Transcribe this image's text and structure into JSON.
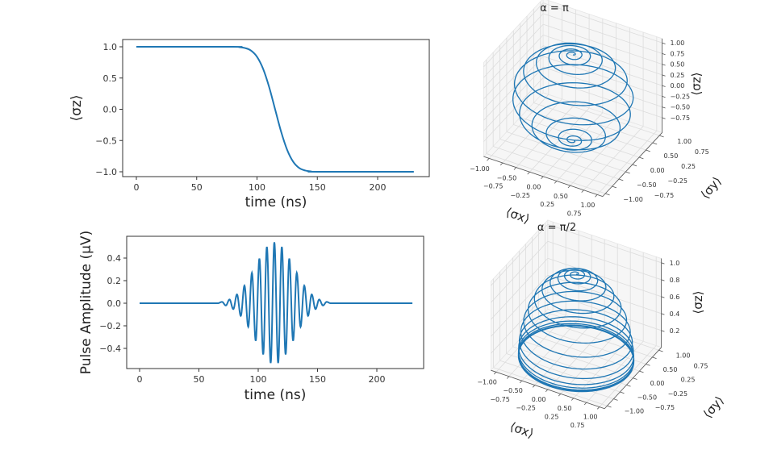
{
  "chart_data": [
    {
      "type": "line",
      "xlabel": "time (ns)",
      "ylabel": "⟨σz⟩",
      "xticks": [
        0,
        50,
        100,
        150,
        200
      ],
      "yticks": [
        -1.0,
        -0.5,
        0.0,
        0.5,
        1.0
      ],
      "ytick_labels": [
        "−1.0",
        "−0.5",
        "0.0",
        "0.5",
        "1.0"
      ],
      "xlim": [
        -11,
        243
      ],
      "ylim": [
        -1.1,
        1.1
      ],
      "grid": false,
      "color": "#1f77b4",
      "series": [
        {
          "x": [
            0,
            80,
            85,
            90,
            95,
            100,
            105,
            110,
            115,
            120,
            125,
            130,
            135,
            140,
            145,
            150,
            230
          ],
          "y": [
            1.0,
            1.0,
            0.995,
            0.98,
            0.94,
            0.84,
            0.65,
            0.36,
            0.0,
            -0.36,
            -0.65,
            -0.84,
            -0.94,
            -0.98,
            -0.995,
            -1.0,
            -1.0
          ]
        }
      ]
    },
    {
      "type": "line",
      "xlabel": "time (ns)",
      "ylabel": "Pulse Amplitude (μV)",
      "xticks": [
        0,
        50,
        100,
        150,
        200
      ],
      "yticks": [
        -0.4,
        -0.2,
        0.0,
        0.2,
        0.4
      ],
      "ytick_labels": [
        "−0.4",
        "−0.2",
        "0.0",
        "0.2",
        "0.4"
      ],
      "xlim": [
        -11,
        240
      ],
      "ylim": [
        -0.58,
        0.59
      ],
      "grid": false,
      "color": "#1f77b4",
      "series": [
        {
          "note_points": "local extrema of the oscillating pulse",
          "x": [
            0,
            66,
            69.5,
            72.7,
            75.8,
            79.0,
            82.1,
            85.3,
            88.4,
            91.6,
            94.7,
            97.9,
            101.0,
            104.2,
            107.3,
            110.5,
            113.6,
            116.8,
            119.9,
            123.1,
            126.2,
            129.4,
            132.5,
            135.7,
            138.8,
            142.0,
            145.1,
            148.3,
            151.4,
            154.6,
            157.7,
            161,
            230
          ],
          "y": [
            0,
            0,
            0.012,
            -0.02,
            0.033,
            -0.052,
            0.078,
            -0.112,
            0.156,
            -0.209,
            0.269,
            -0.333,
            0.396,
            -0.454,
            0.5,
            -0.53,
            0.54,
            -0.53,
            0.5,
            -0.454,
            0.396,
            -0.333,
            0.269,
            -0.209,
            0.156,
            -0.112,
            0.078,
            -0.052,
            0.033,
            -0.02,
            0.012,
            0,
            0
          ]
        }
      ]
    },
    {
      "type": "line3d",
      "title": "α = π",
      "xlabel": "⟨σx⟩",
      "ylabel": "⟨σy⟩",
      "zlabel": "⟨σz⟩",
      "xticks": [
        -1.0,
        -0.75,
        -0.5,
        -0.25,
        0.0,
        0.25,
        0.5,
        0.75,
        1.0
      ],
      "xtick_labels": [
        "−1.00",
        "−0.75",
        "−0.50",
        "−0.25",
        "0.00",
        "0.25",
        "0.50",
        "0.75",
        "1.00"
      ],
      "yticks": [
        -1.0,
        -0.75,
        -0.5,
        -0.25,
        0.0,
        0.25,
        0.5,
        0.75,
        1.0
      ],
      "ytick_labels": [
        "−1.00",
        "−0.75",
        "−0.50",
        "−0.25",
        "0.00",
        "0.25",
        "0.50",
        "0.75",
        "1.00"
      ],
      "zticks": [
        -0.75,
        -0.5,
        -0.25,
        0.0,
        0.25,
        0.5,
        0.75,
        1.0
      ],
      "ztick_labels": [
        "−0.75",
        "−0.50",
        "−0.25",
        "0.00",
        "0.25",
        "0.50",
        "0.75",
        "1.00"
      ],
      "zlim": [
        -1.1,
        1.1
      ],
      "color": "#1f77b4",
      "trajectory_turn_z": [
        1.0,
        0.99,
        0.96,
        0.88,
        0.72,
        0.45,
        0.08,
        -0.3,
        -0.62,
        -0.84,
        -0.95,
        -0.99,
        -1.0
      ]
    },
    {
      "type": "line3d",
      "title": "α = π/2",
      "xlabel": "⟨σx⟩",
      "ylabel": "⟨σy⟩",
      "zlabel": "⟨σz⟩",
      "xticks": [
        -1.0,
        -0.75,
        -0.5,
        -0.25,
        0.0,
        0.25,
        0.5,
        0.75,
        1.0
      ],
      "xtick_labels": [
        "−1.00",
        "−0.75",
        "−0.50",
        "−0.25",
        "0.00",
        "0.25",
        "0.50",
        "0.75",
        "1.00"
      ],
      "yticks": [
        -1.0,
        -0.75,
        -0.5,
        -0.25,
        0.0,
        0.25,
        0.5,
        0.75,
        1.0
      ],
      "ytick_labels": [
        "−1.00",
        "−0.75",
        "−0.50",
        "−0.25",
        "0.00",
        "0.25",
        "0.50",
        "0.75",
        "1.00"
      ],
      "zticks": [
        0.2,
        0.4,
        0.6,
        0.8,
        1.0
      ],
      "ztick_labels": [
        "0.2",
        "0.4",
        "0.6",
        "0.8",
        "1.0"
      ],
      "zlim": [
        0.0,
        1.05
      ],
      "color": "#1f77b4",
      "trajectory_turn_z": [
        1.0,
        0.99,
        0.97,
        0.93,
        0.86,
        0.76,
        0.63,
        0.49,
        0.35,
        0.23,
        0.13,
        0.07,
        0.035,
        0.015,
        0.005,
        0.0
      ]
    }
  ]
}
